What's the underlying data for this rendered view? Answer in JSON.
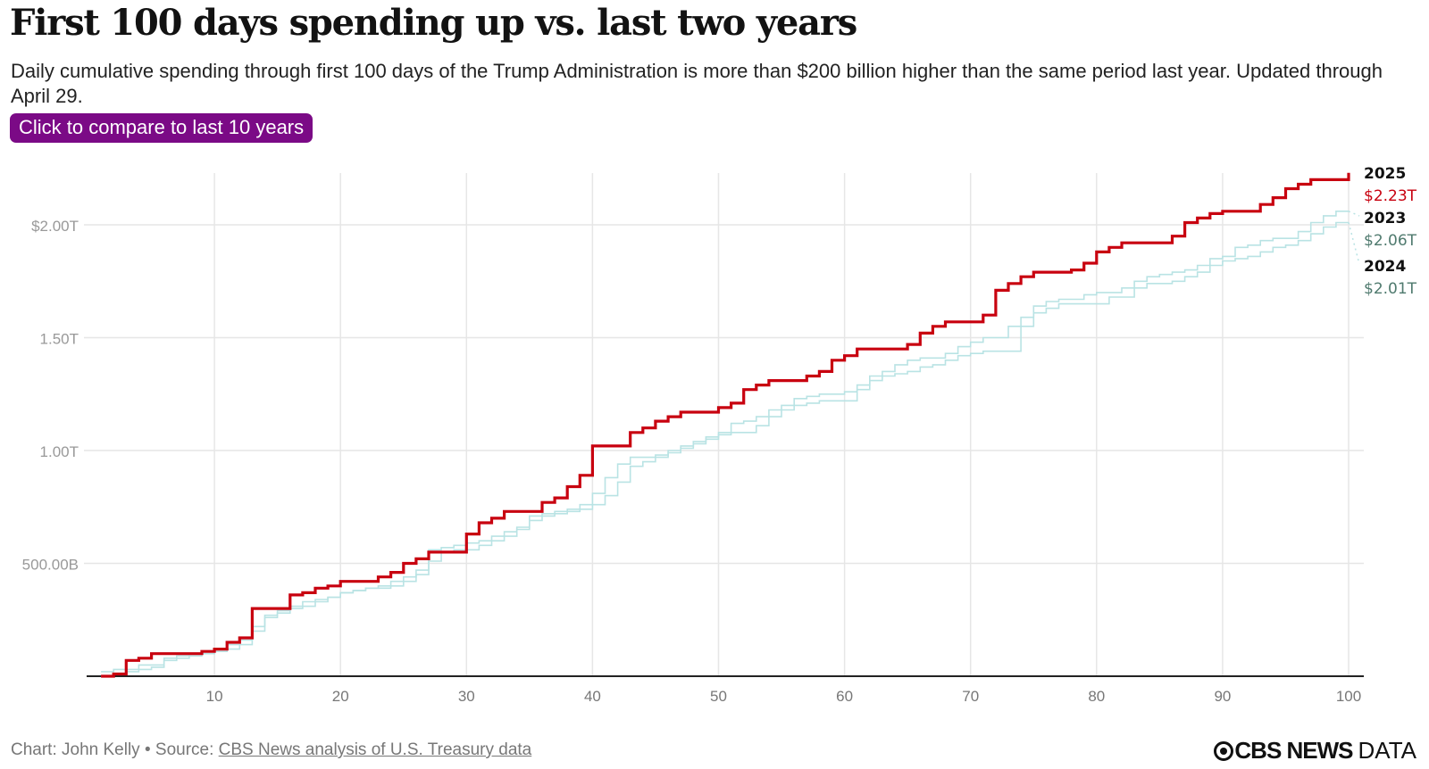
{
  "header": {
    "title": "First 100 days spending up vs. last two years",
    "subtitle": "Daily cumulative spending through first 100 days of the Trump Administration is more than $200 billion higher than the same period last year. Updated through April 29.",
    "compare_button": "Click to compare to last 10 years"
  },
  "footer": {
    "credit": "Chart: John Kelly • Source: ",
    "source_link": "CBS News analysis of U.S. Treasury data",
    "logo_brand": "CBS NEWS",
    "logo_suffix": "DATA"
  },
  "colors": {
    "accent_2025": "#c8000f",
    "other_years": "#b9e3e4",
    "label_value_other": "#4f7a6e",
    "button": "#7b0a86"
  },
  "chart_data": {
    "type": "line",
    "step": true,
    "title": "First 100 days spending up vs. last two years",
    "xlabel": "",
    "ylabel": "",
    "xlim": [
      0,
      100
    ],
    "ylim": [
      0,
      2.25
    ],
    "x_ticks": [
      10,
      20,
      30,
      40,
      50,
      60,
      70,
      80,
      90,
      100
    ],
    "y_ticks": [
      {
        "value": 0.5,
        "label": "500.00B"
      },
      {
        "value": 1.0,
        "label": "1.00T"
      },
      {
        "value": 1.5,
        "label": "1.50T"
      },
      {
        "value": 2.0,
        "label": "$2.00T"
      }
    ],
    "grid": true,
    "units": "trillions USD",
    "series": [
      {
        "name": "2023",
        "end_label": "2023",
        "end_value_label": "$2.06T",
        "values": [
          0.02,
          0.03,
          0.03,
          0.05,
          0.05,
          0.08,
          0.09,
          0.1,
          0.11,
          0.12,
          0.14,
          0.16,
          0.22,
          0.27,
          0.29,
          0.31,
          0.33,
          0.34,
          0.35,
          0.37,
          0.38,
          0.39,
          0.4,
          0.42,
          0.44,
          0.47,
          0.56,
          0.57,
          0.58,
          0.59,
          0.6,
          0.62,
          0.64,
          0.66,
          0.71,
          0.72,
          0.73,
          0.74,
          0.76,
          0.81,
          0.88,
          0.94,
          0.97,
          0.97,
          0.98,
          1.0,
          1.02,
          1.04,
          1.06,
          1.08,
          1.12,
          1.13,
          1.15,
          1.18,
          1.2,
          1.23,
          1.24,
          1.25,
          1.25,
          1.26,
          1.29,
          1.33,
          1.35,
          1.38,
          1.4,
          1.41,
          1.41,
          1.43,
          1.46,
          1.48,
          1.5,
          1.5,
          1.55,
          1.59,
          1.64,
          1.66,
          1.67,
          1.67,
          1.69,
          1.7,
          1.7,
          1.72,
          1.75,
          1.77,
          1.78,
          1.79,
          1.8,
          1.82,
          1.85,
          1.86,
          1.9,
          1.91,
          1.93,
          1.94,
          1.94,
          1.97,
          2.01,
          2.04,
          2.06,
          2.06
        ]
      },
      {
        "name": "2024",
        "end_label": "2024",
        "end_value_label": "$2.01T",
        "values": [
          0.0,
          0.01,
          0.02,
          0.03,
          0.04,
          0.07,
          0.08,
          0.09,
          0.1,
          0.11,
          0.12,
          0.14,
          0.2,
          0.26,
          0.28,
          0.3,
          0.31,
          0.33,
          0.35,
          0.37,
          0.38,
          0.39,
          0.39,
          0.4,
          0.42,
          0.45,
          0.51,
          0.55,
          0.56,
          0.56,
          0.58,
          0.6,
          0.62,
          0.65,
          0.69,
          0.71,
          0.72,
          0.73,
          0.74,
          0.76,
          0.8,
          0.86,
          0.93,
          0.95,
          0.97,
          0.99,
          1.01,
          1.03,
          1.05,
          1.07,
          1.08,
          1.08,
          1.11,
          1.15,
          1.18,
          1.2,
          1.21,
          1.22,
          1.22,
          1.22,
          1.27,
          1.31,
          1.33,
          1.34,
          1.35,
          1.37,
          1.38,
          1.4,
          1.42,
          1.43,
          1.44,
          1.44,
          1.44,
          1.55,
          1.61,
          1.63,
          1.65,
          1.65,
          1.65,
          1.65,
          1.68,
          1.68,
          1.72,
          1.74,
          1.74,
          1.75,
          1.77,
          1.79,
          1.82,
          1.84,
          1.85,
          1.86,
          1.88,
          1.9,
          1.91,
          1.93,
          1.96,
          1.99,
          2.01,
          2.01
        ]
      },
      {
        "name": "2025",
        "end_label": "2025",
        "end_value_label": "$2.23T",
        "values": [
          0.0,
          0.01,
          0.07,
          0.08,
          0.1,
          0.1,
          0.1,
          0.1,
          0.11,
          0.12,
          0.15,
          0.17,
          0.3,
          0.3,
          0.3,
          0.36,
          0.37,
          0.39,
          0.4,
          0.42,
          0.42,
          0.42,
          0.44,
          0.46,
          0.5,
          0.52,
          0.55,
          0.55,
          0.55,
          0.63,
          0.68,
          0.7,
          0.73,
          0.73,
          0.73,
          0.77,
          0.79,
          0.84,
          0.89,
          1.02,
          1.02,
          1.02,
          1.08,
          1.1,
          1.13,
          1.15,
          1.17,
          1.17,
          1.17,
          1.19,
          1.21,
          1.27,
          1.29,
          1.31,
          1.31,
          1.31,
          1.33,
          1.35,
          1.4,
          1.42,
          1.45,
          1.45,
          1.45,
          1.45,
          1.47,
          1.52,
          1.55,
          1.57,
          1.57,
          1.57,
          1.6,
          1.71,
          1.74,
          1.77,
          1.79,
          1.79,
          1.79,
          1.8,
          1.83,
          1.88,
          1.9,
          1.92,
          1.92,
          1.92,
          1.92,
          1.95,
          2.01,
          2.03,
          2.05,
          2.06,
          2.06,
          2.06,
          2.09,
          2.12,
          2.16,
          2.18,
          2.2,
          2.2,
          2.2,
          2.23
        ]
      }
    ]
  }
}
